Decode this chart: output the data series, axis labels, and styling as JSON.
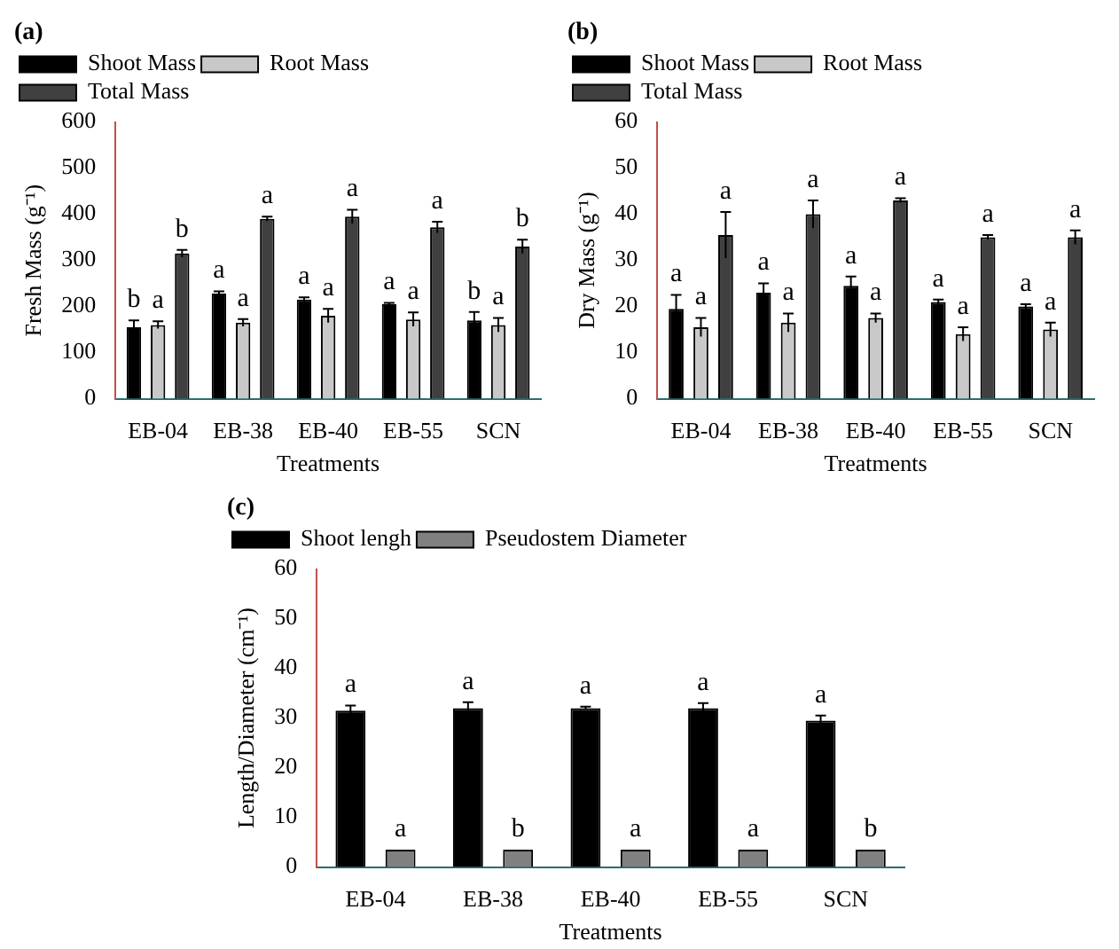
{
  "chart_data": [
    {
      "type": "bar",
      "title": "(a)",
      "xlabel": "Treatments",
      "ylabel": "Fresh Mass (g⁻¹)",
      "categories": [
        "EB-04",
        "EB-38",
        "EB-40",
        "EB-55",
        "SCN"
      ],
      "ylim": [
        0,
        600
      ],
      "yticks": [
        0,
        100,
        200,
        300,
        400,
        500,
        600
      ],
      "grid": false,
      "legend": "top left",
      "series": [
        {
          "name": "Shoot Mass",
          "color": "#000000",
          "values": [
            155,
            228,
            215,
            205,
            170
          ],
          "errors": [
            15,
            5,
            5,
            3,
            18
          ],
          "value_labels": [
            "b",
            "a",
            "a",
            "a",
            "b"
          ]
        },
        {
          "name": "Root Mass",
          "color": "#c8c8c8",
          "values": [
            160,
            165,
            180,
            172,
            160
          ],
          "errors": [
            8,
            8,
            15,
            15,
            15
          ],
          "value_labels": [
            "a",
            "a",
            "a",
            "a",
            "a"
          ]
        },
        {
          "name": "Total Mass",
          "color": "#404040",
          "values": [
            315,
            390,
            395,
            372,
            330
          ],
          "errors": [
            8,
            5,
            15,
            12,
            15
          ],
          "value_labels": [
            "b",
            "a",
            "a",
            "a",
            "b"
          ]
        }
      ]
    },
    {
      "type": "bar",
      "title": "(b)",
      "xlabel": "Treatments",
      "ylabel": "Dry Mass (g⁻¹)",
      "categories": [
        "EB-04",
        "EB-38",
        "EB-40",
        "EB-55",
        "SCN"
      ],
      "ylim": [
        0,
        60
      ],
      "yticks": [
        0,
        10,
        20,
        30,
        40,
        50,
        60
      ],
      "grid": false,
      "legend": "top left",
      "series": [
        {
          "name": "Shoot Mass",
          "color": "#000000",
          "values": [
            19.5,
            23,
            24.5,
            21,
            20
          ],
          "errors": [
            3,
            2,
            2,
            0.5,
            0.5
          ],
          "value_labels": [
            "a",
            "a",
            "a",
            "a",
            "a"
          ]
        },
        {
          "name": "Root Mass",
          "color": "#c8c8c8",
          "values": [
            15.5,
            16.5,
            17.5,
            14,
            15
          ],
          "errors": [
            2,
            2,
            1,
            1.5,
            1.5
          ],
          "value_labels": [
            "a",
            "a",
            "a",
            "a",
            "a"
          ]
        },
        {
          "name": "Total Mass",
          "color": "#404040",
          "values": [
            35.5,
            40,
            43,
            35,
            35
          ],
          "errors": [
            5,
            3,
            0.5,
            0.5,
            1.5
          ],
          "value_labels": [
            "a",
            "a",
            "a",
            "a",
            "a"
          ]
        }
      ]
    },
    {
      "type": "bar",
      "title": "(c)",
      "xlabel": "Treatments",
      "ylabel": "Length/Diameter (cm⁻¹)",
      "categories": [
        "EB-04",
        "EB-38",
        "EB-40",
        "EB-55",
        "SCN"
      ],
      "ylim": [
        0,
        60
      ],
      "yticks": [
        0,
        10,
        20,
        30,
        40,
        50,
        60
      ],
      "grid": false,
      "legend": "top left",
      "series": [
        {
          "name": "Shoot lengh",
          "color": "#000000",
          "values": [
            31.5,
            32,
            32,
            32,
            29.5
          ],
          "errors": [
            1,
            1.2,
            0.3,
            1,
            1
          ],
          "value_labels": [
            "a",
            "a",
            "a",
            "a",
            "a"
          ]
        },
        {
          "name": "Pseudostem Diameter",
          "color": "#808080",
          "values": [
            3.5,
            3.5,
            3.5,
            3.5,
            3.5
          ],
          "value_labels": [
            "a",
            "b",
            "a",
            "a",
            "b"
          ]
        }
      ]
    }
  ]
}
